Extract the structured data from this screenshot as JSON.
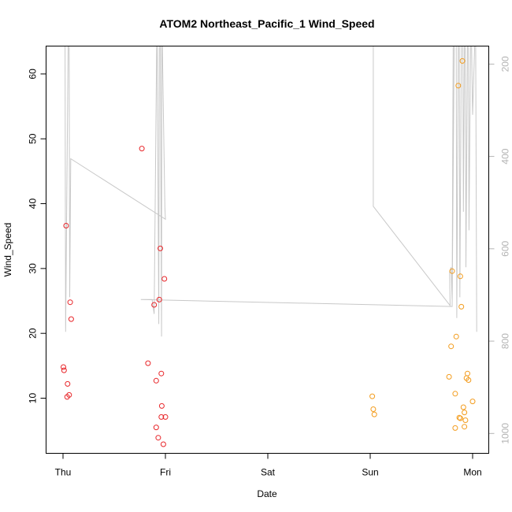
{
  "chart_data": {
    "type": "scatter",
    "title": "ATOM2 Northeast_Pacific_1 Wind_Speed",
    "xlabel": "Date",
    "ylabel": "Wind_Speed",
    "x_tick_labels": [
      "Thu",
      "Fri",
      "Sat",
      "Sun",
      "Mon"
    ],
    "x_ticks_days": [
      0,
      1,
      2,
      3,
      4
    ],
    "xlim_days": [
      -0.2,
      4.17
    ],
    "ylim": [
      1.5,
      64.3
    ],
    "y_ticks": [
      10,
      20,
      30,
      40,
      50,
      60
    ],
    "y2_ticks": [
      200,
      400,
      600,
      800,
      1000
    ],
    "y2_lim": [
      1043,
      161
    ],
    "grid": false,
    "colors": {
      "series_red": "#e8262a",
      "series_orange": "#f39c1d",
      "pressure_line": "#c8c8c8",
      "right_axis": "#b3b3b3"
    },
    "series": [
      {
        "color_key": "series_red",
        "points": [
          [
            0.004,
            14.8
          ],
          [
            0.01,
            14.3
          ],
          [
            0.03,
            36.6
          ],
          [
            0.045,
            12.2
          ],
          [
            0.04,
            10.2
          ],
          [
            0.06,
            10.5
          ],
          [
            0.07,
            24.8
          ],
          [
            0.08,
            22.2
          ],
          [
            0.77,
            48.5
          ],
          [
            0.83,
            15.4
          ],
          [
            0.89,
            24.4
          ],
          [
            0.91,
            12.7
          ],
          [
            0.91,
            5.5
          ],
          [
            0.93,
            3.9
          ],
          [
            0.94,
            25.2
          ],
          [
            0.95,
            33.1
          ],
          [
            0.96,
            13.8
          ],
          [
            0.96,
            7.1
          ],
          [
            0.965,
            8.8
          ],
          [
            0.98,
            2.9
          ],
          [
            0.99,
            28.4
          ],
          [
            1.0,
            7.1
          ]
        ]
      },
      {
        "color_key": "series_orange",
        "points": [
          [
            3.02,
            10.3
          ],
          [
            3.03,
            8.3
          ],
          [
            3.04,
            7.5
          ],
          [
            3.77,
            13.3
          ],
          [
            3.79,
            18.0
          ],
          [
            3.8,
            29.6
          ],
          [
            3.83,
            10.7
          ],
          [
            3.84,
            19.5
          ],
          [
            3.83,
            5.4
          ],
          [
            3.86,
            58.2
          ],
          [
            3.87,
            7.0
          ],
          [
            3.88,
            6.9
          ],
          [
            3.88,
            28.8
          ],
          [
            3.89,
            24.1
          ],
          [
            3.9,
            62.0
          ],
          [
            3.91,
            8.6
          ],
          [
            3.92,
            7.8
          ],
          [
            3.92,
            5.6
          ],
          [
            3.93,
            6.6
          ],
          [
            3.94,
            13.1
          ],
          [
            3.95,
            13.8
          ],
          [
            3.96,
            12.8
          ],
          [
            4.0,
            9.5
          ]
        ]
      }
    ],
    "pressure_line": [
      [
        0.0,
        161
      ],
      [
        0.02,
        161
      ],
      [
        0.025,
        780
      ],
      [
        0.05,
        161
      ],
      [
        0.06,
        161
      ],
      [
        0.065,
        705
      ],
      [
        0.075,
        405
      ],
      [
        1.0,
        536
      ],
      [
        0.995,
        510
      ],
      [
        0.97,
        161
      ],
      [
        0.965,
        161
      ],
      [
        0.962,
        790
      ],
      [
        0.95,
        161
      ],
      [
        0.94,
        161
      ],
      [
        0.935,
        763
      ],
      [
        0.92,
        161
      ],
      [
        0.915,
        161
      ],
      [
        0.89,
        741
      ],
      [
        0.87,
        710
      ],
      [
        0.76,
        710
      ],
      [
        3.8,
        725
      ],
      [
        3.82,
        161
      ],
      [
        0.24,
        161
      ],
      [
        0.18,
        161
      ],
      [
        0.19,
        161
      ],
      [
        3.03,
        161
      ],
      [
        3.03,
        508
      ],
      [
        3.78,
        723
      ],
      [
        3.775,
        650
      ],
      [
        3.79,
        640
      ],
      [
        3.8,
        710
      ],
      [
        3.81,
        161
      ],
      [
        3.84,
        161
      ],
      [
        3.845,
        750
      ],
      [
        3.86,
        161
      ],
      [
        3.87,
        161
      ],
      [
        3.875,
        705
      ],
      [
        3.89,
        161
      ],
      [
        3.905,
        161
      ],
      [
        3.91,
        520
      ],
      [
        3.92,
        161
      ],
      [
        3.93,
        161
      ],
      [
        3.935,
        640
      ],
      [
        3.95,
        161
      ],
      [
        3.96,
        161
      ],
      [
        3.965,
        560
      ],
      [
        3.98,
        161
      ],
      [
        3.99,
        161
      ],
      [
        4.0,
        310
      ],
      [
        4.02,
        161
      ],
      [
        4.03,
        161
      ],
      [
        4.04,
        780
      ]
    ]
  }
}
